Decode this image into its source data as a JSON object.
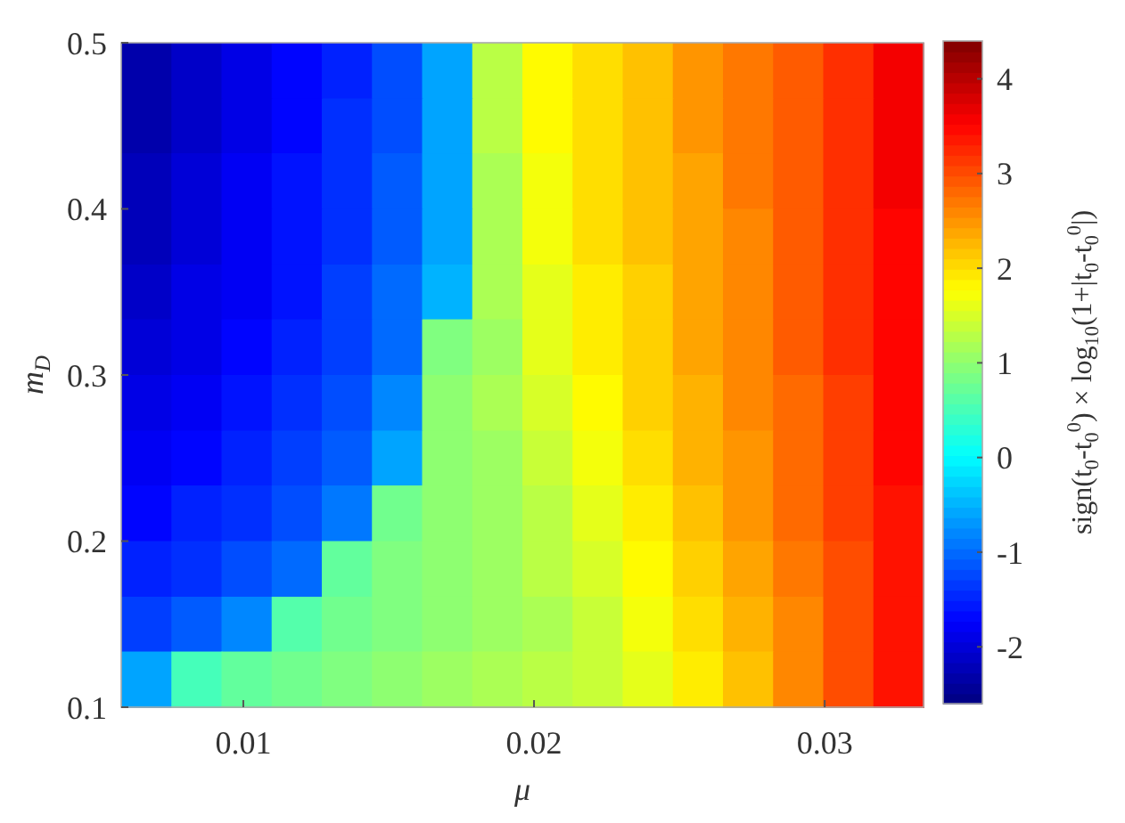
{
  "chart_data": {
    "type": "heatmap",
    "xlabel": "μ",
    "ylabel": "m$_{D}$",
    "clabel": "sign(t$_{0}$-t$_{0}$$^{0}$) × log$_{10}$(1+|t$_{0}$-t$_{0}$$^{0}$|)",
    "x": [
      0.00666,
      0.00839,
      0.01011,
      0.01184,
      0.01356,
      0.01529,
      0.01701,
      0.01874,
      0.02046,
      0.02219,
      0.02391,
      0.02564,
      0.02736,
      0.02909,
      0.03081,
      0.03254
    ],
    "y": [
      0.483,
      0.45,
      0.417,
      0.383,
      0.35,
      0.317,
      0.283,
      0.25,
      0.217,
      0.183,
      0.15,
      0.117
    ],
    "xlim": [
      0.0058,
      0.0334
    ],
    "xticks": [
      0.01,
      0.02,
      0.03
    ],
    "ylim": [
      0.1,
      0.5
    ],
    "yticks": [
      0.1,
      0.2,
      0.3,
      0.4,
      0.5
    ],
    "clim": [
      -2.6,
      4.4
    ],
    "cticks": [
      -2,
      -1,
      0,
      1,
      2,
      3,
      4
    ],
    "cells": [
      [
        -2.3,
        -2.1,
        -1.9,
        -1.7,
        -1.5,
        -1.2,
        -0.6,
        1.3,
        1.8,
        2.0,
        2.2,
        2.5,
        2.7,
        2.9,
        3.2,
        3.6
      ],
      [
        -2.3,
        -2.1,
        -1.9,
        -1.7,
        -1.4,
        -1.2,
        -0.6,
        1.3,
        1.8,
        2.0,
        2.2,
        2.5,
        2.7,
        2.9,
        3.2,
        3.6
      ],
      [
        -2.2,
        -2.0,
        -1.8,
        -1.6,
        -1.4,
        -1.1,
        -0.6,
        1.2,
        1.7,
        2.0,
        2.2,
        2.4,
        2.7,
        2.9,
        3.2,
        3.6
      ],
      [
        -2.2,
        -2.0,
        -1.8,
        -1.6,
        -1.4,
        -1.1,
        -0.6,
        1.2,
        1.7,
        2.0,
        2.2,
        2.4,
        2.6,
        2.9,
        3.2,
        3.5
      ],
      [
        -2.1,
        -1.9,
        -1.8,
        -1.6,
        -1.3,
        -1.0,
        -0.5,
        1.2,
        1.6,
        1.9,
        2.1,
        2.4,
        2.6,
        2.9,
        3.2,
        3.5
      ],
      [
        -2.0,
        -1.9,
        -1.7,
        -1.5,
        -1.3,
        -1.0,
        0.9,
        1.1,
        1.6,
        1.9,
        2.1,
        2.4,
        2.6,
        2.9,
        3.2,
        3.5
      ],
      [
        -1.9,
        -1.8,
        -1.6,
        -1.4,
        -1.2,
        -0.8,
        1.0,
        1.2,
        1.5,
        1.8,
        2.1,
        2.3,
        2.6,
        2.8,
        3.1,
        3.5
      ],
      [
        -1.8,
        -1.7,
        -1.5,
        -1.3,
        -1.1,
        -0.6,
        1.0,
        1.1,
        1.4,
        1.7,
        2.0,
        2.3,
        2.5,
        2.8,
        3.1,
        3.5
      ],
      [
        -1.7,
        -1.5,
        -1.4,
        -1.2,
        -0.9,
        0.8,
        1.0,
        1.1,
        1.3,
        1.6,
        1.9,
        2.2,
        2.5,
        2.8,
        3.1,
        3.4
      ],
      [
        -1.5,
        -1.4,
        -1.2,
        -1.0,
        0.7,
        0.9,
        1.0,
        1.1,
        1.3,
        1.5,
        1.8,
        2.1,
        2.4,
        2.7,
        3.0,
        3.4
      ],
      [
        -1.3,
        -1.1,
        -0.8,
        0.6,
        0.8,
        0.9,
        1.0,
        1.1,
        1.2,
        1.4,
        1.7,
        2.0,
        2.3,
        2.6,
        3.0,
        3.4
      ],
      [
        -0.6,
        0.5,
        0.7,
        0.8,
        0.9,
        1.0,
        1.1,
        1.2,
        1.3,
        1.4,
        1.6,
        1.9,
        2.2,
        2.6,
        3.0,
        3.4
      ]
    ]
  }
}
